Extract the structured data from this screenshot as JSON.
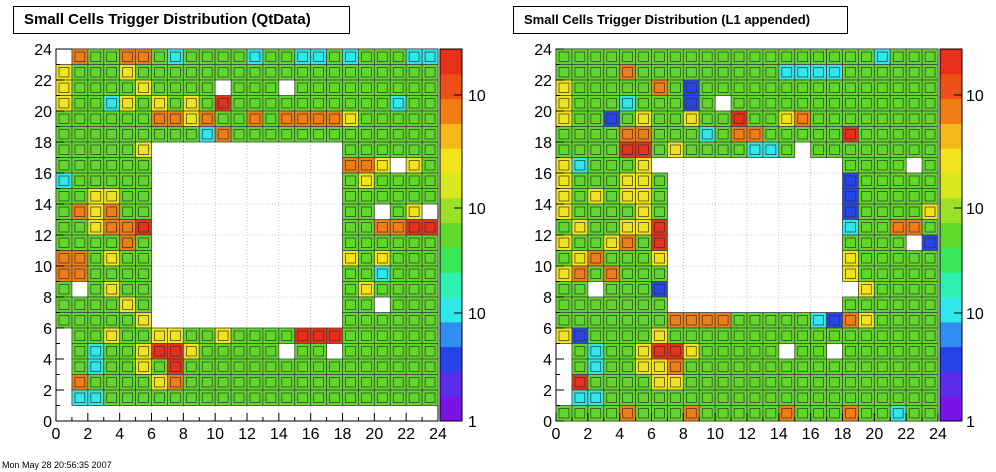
{
  "footer_text": "Mon May 28 20:56:35 2007",
  "chart_data": [
    {
      "type": "heatmap",
      "title": "Small Cells Trigger Distribution (QtData)",
      "xlim": [
        0,
        24
      ],
      "ylim": [
        0,
        24
      ],
      "x_ticks": [
        "0",
        "2",
        "4",
        "6",
        "8",
        "10",
        "12",
        "14",
        "16",
        "18",
        "20",
        "22",
        "24"
      ],
      "y_ticks": [
        "0",
        "2",
        "4",
        "6",
        "8",
        "10",
        "12",
        "14",
        "16",
        "18",
        "20",
        "22",
        "24"
      ],
      "color_scale": "log",
      "colorbar_labels": [
        "1",
        "10",
        "10",
        "10"
      ],
      "cells": [
        {
          "row": 23,
          "cols": "OGGOOGCGGGGCGGCCGCGGGCC"
        },
        {
          "row": 22,
          "cols": "MGGGMGGGGGGGGGGGGGGGGGGG"
        },
        {
          "row": 21,
          "cols": "MGGGGMGGGGWGGGWGGGGGGGGG"
        },
        {
          "row": 20,
          "cols": "MGGCMGMGMGRGGGGGGGGGGCGG"
        },
        {
          "row": 19,
          "cols": "GGGGGGOOMOGGOGOOOOMGGGGG"
        },
        {
          "row": 18,
          "cols": "GGGGGGGGGCOGGGGGGGGGGGGG"
        },
        {
          "row": 17,
          "cols": "GGGGGM............GGGGGG"
        },
        {
          "row": 16,
          "cols": "GGGGGG............OOMWMG"
        },
        {
          "row": 15,
          "cols": "CGGGGG............GMGGGG"
        },
        {
          "row": 14,
          "cols": "GGMMGG............GGGGGG"
        },
        {
          "row": 13,
          "cols": "GOMOGG............GGWGMW"
        },
        {
          "row": 12,
          "cols": "GGMOOR............GGOORR"
        },
        {
          "row": 11,
          "cols": "GGGGOG............GGGGGG"
        },
        {
          "row": 10,
          "cols": "OOGMGG............MGMGGG"
        },
        {
          "row": 9,
          "cols": "OOGGGG............GGCGGG"
        },
        {
          "row": 8,
          "cols": "GWGMGG............GMGGGG"
        },
        {
          "row": 7,
          "cols": "GGGGMG............GGWGGG"
        },
        {
          "row": 6,
          "cols": "GGGGGM............GGGGGG"
        },
        {
          "row": 5,
          "cols": "GGMGGMMGGMGGGGRRRGGGGGG"
        },
        {
          "row": 4,
          "cols": "GCGGMRRMGGGGGWGGWGGGGGG"
        },
        {
          "row": 3,
          "cols": "GCGGMGRGGGGGGGGGGGGGGGG"
        },
        {
          "row": 2,
          "cols": "OGGGGMOGGGGGGGGGGGGGGGG"
        },
        {
          "row": 1,
          "cols": "CCGGGGGGGGGGGGGGGGGGGGG"
        }
      ]
    },
    {
      "type": "heatmap",
      "title": "Small Cells Trigger Distribution (L1 appended)",
      "xlim": [
        0,
        24
      ],
      "ylim": [
        0,
        24
      ],
      "x_ticks": [
        "0",
        "2",
        "4",
        "6",
        "8",
        "10",
        "12",
        "14",
        "16",
        "18",
        "20",
        "22",
        "24"
      ],
      "y_ticks": [
        "0",
        "2",
        "4",
        "6",
        "8",
        "10",
        "12",
        "14",
        "16",
        "18",
        "20",
        "22",
        "24"
      ],
      "color_scale": "log",
      "colorbar_labels": [
        "1",
        "10",
        "10",
        "10"
      ],
      "cells": [
        {
          "row": 23,
          "cols": "GGGGGGGGGGGGGGGGGGGGCGGG"
        },
        {
          "row": 22,
          "cols": "GGGGOGGGGGGGGGCCCCGGGGGG"
        },
        {
          "row": 21,
          "cols": "MGGGGGOGBGGGGGGGGGGGGGGG"
        },
        {
          "row": 20,
          "cols": "MGGGCGGGBGWGGGGGGGGGGGGG"
        },
        {
          "row": 19,
          "cols": "MGGBGMGGMGGRGGMOGGGGGGGG"
        },
        {
          "row": 18,
          "cols": "GGGGOOGGGCGOOGGGGGRGGGGG"
        },
        {
          "row": 17,
          "cols": "GGGGRRGMGGGGCCGWGGGGGGGG"
        },
        {
          "row": 16,
          "cols": "MCGGGM............GGGGWG"
        },
        {
          "row": 15,
          "cols": "MGGGMMG...........BGGGGG"
        },
        {
          "row": 14,
          "cols": "MGMGMMG...........BGGGGG"
        },
        {
          "row": 13,
          "cols": "MGGGGMG...........BGGGGM"
        },
        {
          "row": 12,
          "cols": "GMGGMMR...........CGGOOG"
        },
        {
          "row": 11,
          "cols": "MGGMOGR...........GGGGWB"
        },
        {
          "row": 10,
          "cols": "GMOGGGM...........MGGGGG"
        },
        {
          "row": 9,
          "cols": "MOGOGGG...........MGGGGG"
        },
        {
          "row": 8,
          "cols": "GGWGGGB...........WMGGGG"
        },
        {
          "row": 7,
          "cols": "GGGGGGG...........GGGGGG"
        },
        {
          "row": 6,
          "cols": "GGGGGGGOOOOGGGGGCBOMGGGG"
        },
        {
          "row": 5,
          "cols": "MBGGGGMGGGGGGGGGGGGGGGGG"
        },
        {
          "row": 4,
          "cols": "GCGGMRRMGGGGGWGGWGGGGGG"
        },
        {
          "row": 3,
          "cols": "GCGGMMOGGGGGGGGGGGGGGGG"
        },
        {
          "row": 2,
          "cols": "RGGGGMMGGGGGGGGGGGGGGGG"
        },
        {
          "row": 1,
          "cols": "CCGGGGGGGGGGGGGGGGGGGGG"
        },
        {
          "row": 0,
          "cols": "GGGGOGGGOGGGGGOGGGOGGCGG"
        }
      ]
    }
  ],
  "palette": {
    "R": "#e8301a",
    "O": "#f07e14",
    "M": "#f2e41c",
    "G": "#5fd82a",
    "C": "#2ee8ea",
    "B": "#2446e8",
    "V": "#7a14e6",
    "W": "#ffffff"
  }
}
